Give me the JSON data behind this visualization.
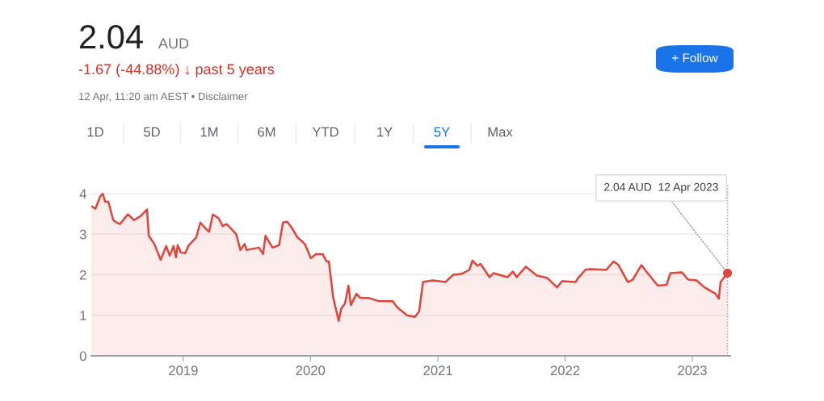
{
  "chart_data": {
    "type": "area",
    "title": "2.04",
    "annotations": [
      "AUD",
      "-1.67 (-44.88%) ↓ past 5 years",
      "12 Apr, 11:20 am AEST • Disclaimer",
      "1D",
      "5D",
      "1M",
      "6M",
      "YTD",
      "1Y",
      "5Y",
      "Max",
      "+ Follow",
      {
        "text": "2.04 AUD  12 Apr 2023",
        "x": "2023-04-12",
        "y": 2.04
      }
    ],
    "x": [
      "2018-04-12",
      "2018-04-24",
      "2018-05-08",
      "2018-05-15",
      "2018-05-22",
      "2018-05-31",
      "2018-06-14",
      "2018-06-23",
      "2018-07-03",
      "2018-07-26",
      "2018-08-13",
      "2018-09-01",
      "2018-09-19",
      "2018-09-24",
      "2018-10-10",
      "2018-10-28",
      "2018-11-13",
      "2018-11-23",
      "2018-12-04",
      "2018-12-11",
      "2018-12-16",
      "2018-12-25",
      "2019-01-06",
      "2019-01-17",
      "2019-02-07",
      "2019-02-19",
      "2019-03-02",
      "2019-03-16",
      "2019-03-27",
      "2019-04-13",
      "2019-04-24",
      "2019-05-06",
      "2019-06-02",
      "2019-06-14",
      "2019-06-26",
      "2019-07-02",
      "2019-08-06",
      "2019-08-18",
      "2019-08-25",
      "2019-09-14",
      "2019-10-03",
      "2019-10-14",
      "2019-10-26",
      "2019-11-07",
      "2019-11-25",
      "2019-12-16",
      "2020-01-02",
      "2020-01-17",
      "2020-02-05",
      "2020-02-16",
      "2020-02-23",
      "2020-03-06",
      "2020-03-22",
      "2020-03-29",
      "2020-04-09",
      "2020-04-19",
      "2020-04-26",
      "2020-05-12",
      "2020-05-23",
      "2020-06-15",
      "2020-07-15",
      "2020-08-24",
      "2020-09-06",
      "2020-10-04",
      "2020-10-27",
      "2020-11-08",
      "2020-11-19",
      "2020-12-17",
      "2021-01-22",
      "2021-02-14",
      "2021-03-09",
      "2021-04-01",
      "2021-04-10",
      "2021-04-24",
      "2021-05-03",
      "2021-05-29",
      "2021-06-09",
      "2021-07-19",
      "2021-08-04",
      "2021-08-15",
      "2021-09-10",
      "2021-10-12",
      "2021-11-11",
      "2021-12-09",
      "2021-12-23",
      "2022-01-31",
      "2022-02-07",
      "2022-02-28",
      "2022-03-14",
      "2022-04-29",
      "2022-05-20",
      "2022-06-02",
      "2022-06-30",
      "2022-07-14",
      "2022-08-08",
      "2022-08-22",
      "2022-09-24",
      "2022-10-19",
      "2022-10-30",
      "2022-12-02",
      "2022-12-20",
      "2023-01-13",
      "2023-02-05",
      "2023-03-09",
      "2023-03-18",
      "2023-03-23",
      "2023-04-12"
    ],
    "series": [
      {
        "color": "#e0443a",
        "values": [
          3.69,
          3.63,
          3.94,
          4.0,
          3.8,
          3.8,
          3.35,
          3.29,
          3.25,
          3.49,
          3.35,
          3.45,
          3.61,
          2.96,
          2.76,
          2.37,
          2.71,
          2.47,
          2.71,
          2.43,
          2.73,
          2.55,
          2.53,
          2.73,
          2.92,
          3.29,
          3.18,
          3.06,
          3.49,
          3.39,
          3.2,
          3.25,
          3.0,
          2.61,
          2.76,
          2.61,
          2.67,
          2.51,
          2.96,
          2.67,
          2.73,
          3.29,
          3.31,
          3.18,
          2.92,
          2.76,
          2.41,
          2.51,
          2.51,
          2.33,
          2.33,
          1.45,
          0.86,
          1.16,
          1.29,
          1.73,
          1.25,
          1.53,
          1.43,
          1.43,
          1.35,
          1.35,
          1.2,
          1.0,
          0.96,
          1.1,
          1.82,
          1.86,
          1.82,
          2.0,
          2.02,
          2.12,
          2.35,
          2.22,
          2.27,
          1.94,
          2.04,
          1.94,
          2.08,
          1.94,
          2.2,
          1.98,
          1.92,
          1.69,
          1.84,
          1.82,
          1.92,
          2.12,
          2.14,
          2.12,
          2.33,
          2.25,
          1.82,
          1.88,
          2.24,
          2.08,
          1.73,
          1.75,
          2.04,
          2.06,
          1.88,
          1.86,
          1.69,
          1.53,
          1.41,
          1.82,
          2.04
        ]
      }
    ],
    "xlim": [
      "2018-04-12",
      "2023-04-20"
    ],
    "xticks": [
      {
        "value": "2019-01-01",
        "label": "2019"
      },
      {
        "value": "2020-01-01",
        "label": "2020"
      },
      {
        "value": "2021-01-01",
        "label": "2021"
      },
      {
        "value": "2022-01-01",
        "label": "2022"
      },
      {
        "value": "2023-01-01",
        "label": "2023"
      }
    ],
    "ylim": [
      0,
      4.2
    ],
    "yticks": [
      0,
      1,
      2,
      3,
      4
    ],
    "grid": "y",
    "marker": "none",
    "line_style": "solid",
    "ref_lines": [
      {
        "axis": "x",
        "value": "2023-04-12",
        "line_style": "dotted",
        "color": "#9e9e9e"
      }
    ]
  }
}
